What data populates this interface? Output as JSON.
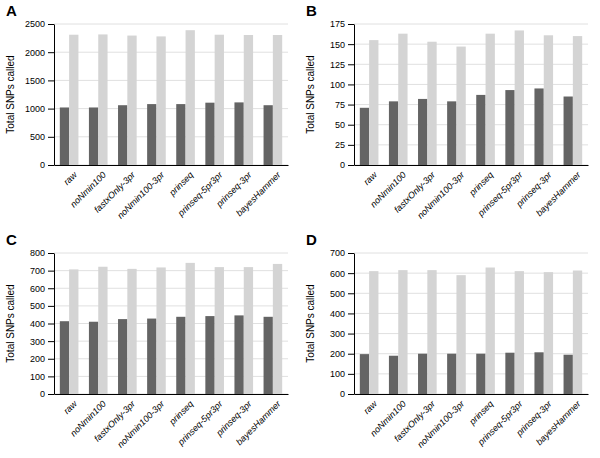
{
  "chart_data": [
    {
      "type": "bar",
      "title": "A",
      "ylabel": "Total SNPs called",
      "categories": [
        "raw",
        "noNmin100",
        "fastxOnly-3pr",
        "noNmin100-3pr",
        "prinseq",
        "prinseq-5pr3pr",
        "prinseq-3pr",
        "bayesHammer"
      ],
      "series": [
        {
          "color": "#646464",
          "values": [
            1020,
            1020,
            1060,
            1080,
            1080,
            1105,
            1110,
            1060
          ]
        },
        {
          "color": "#d4d4d4",
          "values": [
            2310,
            2315,
            2295,
            2280,
            2390,
            2310,
            2305,
            2305
          ]
        }
      ],
      "ylim": [
        0,
        2500
      ],
      "yticks": [
        0,
        500,
        1000,
        1500,
        2000,
        2500
      ],
      "grid": true
    },
    {
      "type": "bar",
      "title": "B",
      "ylabel": "Total SNPs called",
      "categories": [
        "raw",
        "noNmin100",
        "fastxOnly-3pr",
        "noNmin100-3pr",
        "prinseq",
        "prinseq-5pr3pr",
        "prinseq-3pr",
        "bayesHammer"
      ],
      "series": [
        {
          "color": "#646464",
          "values": [
            71,
            79,
            82,
            79,
            87,
            93,
            95,
            85
          ]
        },
        {
          "color": "#d4d4d4",
          "values": [
            155,
            163,
            153,
            147,
            163,
            167,
            161,
            160
          ]
        }
      ],
      "ylim": [
        0,
        175
      ],
      "yticks": [
        0,
        25,
        50,
        75,
        100,
        125,
        150,
        175
      ],
      "grid": true
    },
    {
      "type": "bar",
      "title": "C",
      "ylabel": "Total SNPs called",
      "categories": [
        "raw",
        "noNmin100",
        "fastxOnly-3pr",
        "noNmin100-3pr",
        "prinseq",
        "prinseq-5pr3pr",
        "prinseq-3pr",
        "bayesHammer"
      ],
      "series": [
        {
          "color": "#646464",
          "values": [
            413,
            410,
            425,
            428,
            438,
            442,
            446,
            438
          ]
        },
        {
          "color": "#d4d4d4",
          "values": [
            707,
            722,
            710,
            718,
            744,
            720,
            720,
            738
          ]
        }
      ],
      "ylim": [
        0,
        800
      ],
      "yticks": [
        0,
        100,
        200,
        300,
        400,
        500,
        600,
        700,
        800
      ],
      "grid": true
    },
    {
      "type": "bar",
      "title": "D",
      "ylabel": "Total SNPs called",
      "categories": [
        "raw",
        "noNmin100",
        "fastxOnly-3pr",
        "noNmin100-3pr",
        "prinseq",
        "prinseq-5pr3pr",
        "prinseq-3pr",
        "bayesHammer"
      ],
      "series": [
        {
          "color": "#646464",
          "values": [
            198,
            190,
            200,
            200,
            200,
            205,
            207,
            195
          ]
        },
        {
          "color": "#d4d4d4",
          "values": [
            610,
            615,
            615,
            590,
            628,
            610,
            605,
            613
          ]
        }
      ],
      "ylim": [
        0,
        700
      ],
      "yticks": [
        0,
        100,
        200,
        300,
        400,
        500,
        600,
        700
      ],
      "grid": true
    }
  ]
}
